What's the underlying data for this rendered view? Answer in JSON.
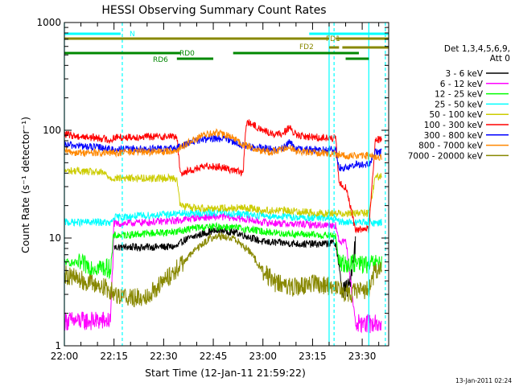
{
  "chart_data": {
    "type": "line",
    "title": "HESSI Observing Summary Count Rates",
    "xlabel": "Start Time (12-Jan-11 21:59:22)",
    "ylabel": "Count Rate (s⁻¹ detector⁻¹)",
    "yscale": "log",
    "ylim": [
      1,
      1000
    ],
    "xlim_minutes": [
      0,
      98
    ],
    "x_ticks": [
      "22:00",
      "22:15",
      "22:30",
      "22:45",
      "23:00",
      "23:15",
      "23:30"
    ],
    "y_ticks": [
      "1",
      "10",
      "100",
      "1000"
    ],
    "grid": false,
    "legend": {
      "placement": "right",
      "header": [
        "Det 1,3,4,5,6,9,",
        "Att 0"
      ]
    },
    "series": [
      {
        "name": "3 - 6 keV",
        "color": "#000000",
        "x": [
          0,
          14,
          15,
          34,
          36,
          40,
          44,
          48,
          52,
          56,
          60,
          66,
          72,
          78,
          82,
          84,
          86,
          88,
          90,
          92,
          94,
          96
        ],
        "y": [
          null,
          null,
          8.2,
          8.3,
          9.5,
          10.5,
          11.5,
          11.8,
          11.2,
          10.2,
          9.2,
          9.0,
          8.8,
          8.8,
          9.0,
          3.2,
          3.5,
          9.2,
          null,
          null,
          null,
          null
        ]
      },
      {
        "name": "6 - 12 keV",
        "color": "#ff00ff",
        "x": [
          0,
          14,
          15,
          34,
          40,
          48,
          56,
          60,
          66,
          72,
          78,
          82,
          83,
          85,
          88,
          90,
          92,
          94,
          96
        ],
        "y": [
          1.7,
          1.7,
          13.5,
          14.5,
          15.5,
          15.8,
          14.8,
          14.0,
          13.6,
          13.4,
          13.2,
          13.2,
          9.0,
          10.0,
          1.6,
          1.6,
          1.6,
          1.6,
          1.6
        ]
      },
      {
        "name": "12 - 25 keV",
        "color": "#00ff00",
        "x": [
          0,
          4,
          8,
          12,
          14,
          15,
          34,
          40,
          48,
          56,
          60,
          66,
          72,
          78,
          82,
          83,
          85,
          88,
          90,
          92,
          94,
          96
        ],
        "y": [
          6.0,
          5.8,
          5.5,
          5.3,
          5.2,
          10.5,
          11.5,
          12.5,
          12.8,
          12.0,
          11.5,
          11.0,
          10.8,
          10.6,
          10.4,
          5.8,
          5.8,
          5.8,
          5.8,
          5.6,
          5.8,
          5.8
        ]
      },
      {
        "name": "25 - 50 keV",
        "color": "#00ffff",
        "x": [
          0,
          4,
          8,
          12,
          14,
          15,
          34,
          40,
          48,
          52,
          56,
          60,
          66,
          72,
          78,
          82,
          83,
          85,
          88,
          90,
          92,
          94,
          96
        ],
        "y": [
          14.0,
          14.0,
          14.0,
          14.0,
          13.5,
          15.5,
          16.8,
          17.0,
          17.2,
          16.8,
          16.5,
          16.2,
          15.8,
          15.5,
          15.3,
          15.0,
          14.0,
          14.0,
          14.0,
          14.0,
          14.0,
          13.8,
          14.0
        ]
      },
      {
        "name": "50 - 100 keV",
        "color": "#cccc00",
        "x": [
          0,
          4,
          8,
          12,
          14,
          34,
          35,
          40,
          46,
          50,
          54,
          56,
          60,
          66,
          72,
          78,
          82,
          83,
          85,
          88,
          90,
          92,
          94,
          96
        ],
        "y": [
          42,
          42,
          41,
          40,
          36,
          36,
          20,
          19,
          19,
          19,
          19,
          19,
          18,
          18,
          17.5,
          17,
          17,
          17,
          17,
          17,
          17,
          17,
          37,
          37
        ]
      },
      {
        "name": "100 - 300 keV",
        "color": "#ff0000",
        "x": [
          0,
          4,
          8,
          12,
          14,
          15,
          34,
          35,
          40,
          44,
          48,
          52,
          54,
          55,
          60,
          64,
          66,
          68,
          70,
          72,
          76,
          80,
          82,
          83,
          85,
          88,
          90,
          92,
          94,
          96
        ],
        "y": [
          92,
          88,
          86,
          84,
          80,
          86,
          88,
          40,
          44,
          47,
          45,
          42,
          40,
          120,
          100,
          90,
          95,
          105,
          90,
          88,
          86,
          85,
          84,
          32,
          30,
          12,
          12,
          12,
          82,
          82
        ]
      },
      {
        "name": "300 - 800 keV",
        "color": "#0000ff",
        "x": [
          0,
          4,
          8,
          12,
          14,
          15,
          34,
          38,
          42,
          46,
          50,
          54,
          56,
          60,
          64,
          66,
          68,
          70,
          74,
          78,
          82,
          83,
          86,
          88,
          90,
          92,
          94,
          96
        ],
        "y": [
          73,
          72,
          70,
          69,
          66,
          66,
          68,
          78,
          82,
          84,
          82,
          72,
          70,
          68,
          66,
          68,
          78,
          66,
          66,
          66,
          66,
          45,
          45,
          48,
          48,
          48,
          62,
          62
        ]
      },
      {
        "name": "800 - 7000 keV",
        "color": "#ff8800",
        "x": [
          0,
          4,
          8,
          12,
          16,
          20,
          24,
          28,
          32,
          34,
          38,
          42,
          46,
          50,
          54,
          58,
          62,
          66,
          68,
          70,
          74,
          78,
          82,
          86,
          90,
          92,
          94,
          96
        ],
        "y": [
          64,
          62,
          62,
          61,
          62,
          63,
          63,
          63,
          64,
          66,
          78,
          90,
          95,
          88,
          74,
          66,
          63,
          66,
          72,
          64,
          62,
          62,
          60,
          58,
          58,
          58,
          56,
          56
        ]
      },
      {
        "name": "7000 - 20000 keV",
        "color": "#888800",
        "x": [
          0,
          4,
          8,
          12,
          16,
          20,
          24,
          28,
          32,
          36,
          40,
          44,
          48,
          52,
          56,
          60,
          64,
          68,
          72,
          76,
          80,
          82,
          84,
          86,
          88,
          90,
          92,
          94,
          96
        ],
        "y": [
          4.6,
          4.2,
          3.8,
          3.5,
          3.0,
          2.8,
          2.8,
          3.5,
          4.5,
          6.0,
          8.0,
          10.0,
          10.5,
          9.5,
          7.5,
          5.0,
          3.8,
          3.5,
          3.6,
          3.8,
          3.6,
          3.5,
          3.2,
          3.0,
          3.2,
          3.3,
          3.3,
          5.0,
          5.2
        ]
      }
    ],
    "flag_bars": [
      {
        "label": "N",
        "color": "#00ffff",
        "segments": [
          [
            0,
            17
          ],
          [
            74,
            98
          ]
        ]
      },
      {
        "label": "FD1",
        "color": "#888800",
        "segments": [
          [
            0,
            80
          ],
          [
            82,
            98
          ]
        ]
      },
      {
        "label": "FD2",
        "color": "#888800",
        "segments": [
          [
            80,
            83
          ],
          [
            84,
            98
          ]
        ]
      },
      {
        "label": "RD0",
        "color": "#008800",
        "segments": [
          [
            0,
            35
          ],
          [
            51,
            89
          ]
        ]
      },
      {
        "label": "RD6",
        "color": "#008800",
        "segments": [
          [
            34,
            45
          ],
          [
            85,
            92
          ]
        ]
      }
    ],
    "vlines": [
      {
        "x": 0,
        "color": "#00ffff",
        "style": "solid"
      },
      {
        "x": 17.5,
        "color": "#00ffff",
        "style": "dashed"
      },
      {
        "x": 80,
        "color": "#00ffff",
        "style": "solid"
      },
      {
        "x": 81.5,
        "color": "#00ffff",
        "style": "dashed"
      },
      {
        "x": 92,
        "color": "#00ffff",
        "style": "solid"
      },
      {
        "x": 97,
        "color": "#00ffff",
        "style": "dashed"
      }
    ],
    "footer_date": "13-Jan-2011 02:24"
  }
}
